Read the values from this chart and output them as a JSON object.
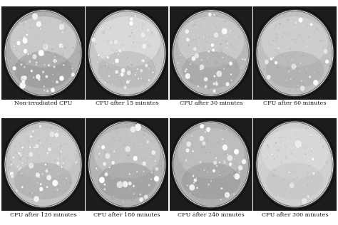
{
  "captions": [
    "Non-irradiated CFU",
    "CFU after 15 minutes",
    "CFU after 30 minutes",
    "CFU after 60 minutes",
    "CFU after 120 minutes",
    "CFU after 180 minutes",
    "CFU after 240 minutes",
    "CFU after 300 minutes"
  ],
  "nrows": 2,
  "ncols": 4,
  "figsize": [
    4.74,
    3.16
  ],
  "dpi": 100,
  "bg_color": "#ffffff",
  "caption_fontsize": 5.8,
  "caption_color": "#111111",
  "outer_rim_color": "#111111",
  "inner_rim_color": "#888888",
  "dish_fill_colors": [
    "#b0b0b0",
    "#c8c8c8",
    "#b8b8b8",
    "#c0c0c0",
    "#c4c4c4",
    "#b4b4b4",
    "#b0b0b0",
    "#d0d0d0"
  ],
  "dish_gradient_top": [
    "#e0e0e0",
    "#e8e8e8",
    "#d8d8d8",
    "#d8d8d8",
    "#d4d4d4",
    "#d0d0d0",
    "#c8c8c8",
    "#e0e0e0"
  ],
  "dish_gradient_bot": [
    "#888888",
    "#aaaaaa",
    "#989898",
    "#a0a0a0",
    "#a0a0a0",
    "#909090",
    "#909090",
    "#c0c0c0"
  ],
  "colony_counts": [
    80,
    70,
    65,
    50,
    75,
    60,
    70,
    15
  ],
  "large_colony_sizes": [
    0.022,
    0.018,
    0.02,
    0.018,
    0.02,
    0.022,
    0.02,
    0.03
  ],
  "small_colony_sizes": [
    0.01,
    0.009,
    0.009,
    0.008,
    0.01,
    0.009,
    0.009,
    0.012
  ],
  "seeds": [
    1,
    2,
    3,
    4,
    5,
    6,
    7,
    8
  ]
}
